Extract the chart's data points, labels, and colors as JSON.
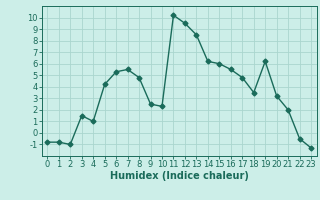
{
  "x": [
    0,
    1,
    2,
    3,
    4,
    5,
    6,
    7,
    8,
    9,
    10,
    11,
    12,
    13,
    14,
    15,
    16,
    17,
    18,
    19,
    20,
    21,
    22,
    23
  ],
  "y": [
    -0.8,
    -0.8,
    -1.0,
    1.5,
    1.0,
    4.2,
    5.3,
    5.5,
    4.8,
    2.5,
    2.3,
    10.2,
    9.5,
    8.5,
    6.2,
    6.0,
    5.5,
    4.8,
    3.5,
    6.2,
    3.2,
    2.0,
    -0.5,
    -1.3
  ],
  "line_color": "#1a6b5a",
  "marker": "D",
  "marker_size": 2.5,
  "linewidth": 1.0,
  "bg_color": "#cceee8",
  "grid_color": "#aad6ce",
  "xlabel": "Humidex (Indice chaleur)",
  "xlim": [
    -0.5,
    23.5
  ],
  "ylim": [
    -2,
    11
  ],
  "yticks": [
    -1,
    0,
    1,
    2,
    3,
    4,
    5,
    6,
    7,
    8,
    9,
    10
  ],
  "xticks": [
    0,
    1,
    2,
    3,
    4,
    5,
    6,
    7,
    8,
    9,
    10,
    11,
    12,
    13,
    14,
    15,
    16,
    17,
    18,
    19,
    20,
    21,
    22,
    23
  ],
  "tick_color": "#1a6b5a",
  "label_fontsize": 7.0,
  "tick_fontsize": 6.0
}
